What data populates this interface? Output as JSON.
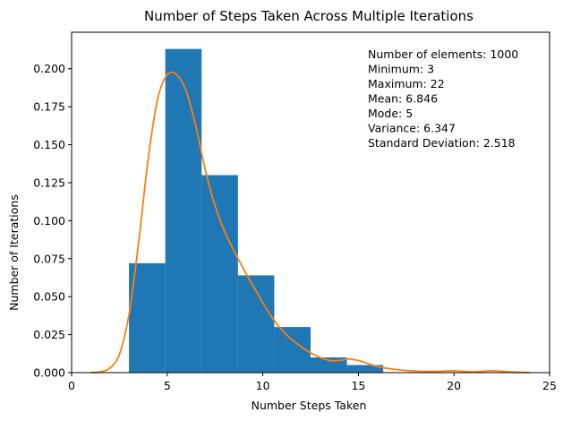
{
  "chart_data": {
    "type": "histogram",
    "title": "Number of Steps Taken Across Multiple Iterations",
    "xlabel": "Number Steps Taken",
    "ylabel": "Number of Iterations",
    "xlim": [
      0,
      25
    ],
    "ylim": [
      0,
      0.224
    ],
    "grid": false,
    "x_ticks": [
      0,
      5,
      10,
      15,
      20,
      25
    ],
    "x_tick_labels": [
      "0",
      "5",
      "10",
      "15",
      "20",
      "25"
    ],
    "y_ticks": [
      0,
      0.025,
      0.05,
      0.075,
      0.1,
      0.125,
      0.15,
      0.175,
      0.2
    ],
    "y_tick_labels": [
      "0.000",
      "0.025",
      "0.050",
      "0.075",
      "0.100",
      "0.125",
      "0.150",
      "0.175",
      "0.200"
    ],
    "bins": [
      {
        "x0": 3.0,
        "x1": 4.9,
        "value": 0.072
      },
      {
        "x0": 4.9,
        "x1": 6.8,
        "value": 0.213
      },
      {
        "x0": 6.8,
        "x1": 8.7,
        "value": 0.13
      },
      {
        "x0": 8.7,
        "x1": 10.6,
        "value": 0.064
      },
      {
        "x0": 10.6,
        "x1": 12.5,
        "value": 0.03
      },
      {
        "x0": 12.5,
        "x1": 14.4,
        "value": 0.01
      },
      {
        "x0": 14.4,
        "x1": 16.3,
        "value": 0.005
      },
      {
        "x0": 16.3,
        "x1": 18.2,
        "value": 0.0
      },
      {
        "x0": 18.2,
        "x1": 20.1,
        "value": 0.0
      },
      {
        "x0": 20.1,
        "x1": 22.0,
        "value": 0.0
      }
    ],
    "kde": {
      "x": [
        1.0,
        1.5,
        2.0,
        2.5,
        3.0,
        3.5,
        4.0,
        4.5,
        5.0,
        5.5,
        6.0,
        6.5,
        7.0,
        7.5,
        8.0,
        8.5,
        9.0,
        9.5,
        10.0,
        10.5,
        11.0,
        11.5,
        12.0,
        12.5,
        13.0,
        13.5,
        14.0,
        14.5,
        15.0,
        15.5,
        16.0,
        17.0,
        18.0,
        19.0,
        20.0,
        21.0,
        22.0,
        23.0,
        24.0
      ],
      "y": [
        0.0,
        0.0005,
        0.003,
        0.012,
        0.038,
        0.085,
        0.14,
        0.18,
        0.196,
        0.196,
        0.185,
        0.162,
        0.133,
        0.11,
        0.093,
        0.08,
        0.068,
        0.057,
        0.046,
        0.036,
        0.028,
        0.022,
        0.017,
        0.013,
        0.01,
        0.008,
        0.008,
        0.009,
        0.008,
        0.006,
        0.004,
        0.002,
        0.001,
        0.0008,
        0.0012,
        0.0005,
        0.0012,
        0.0004,
        0.0
      ]
    },
    "stats_lines": [
      "Number of elements: 1000",
      "Minimum: 3",
      "Maximum: 22",
      "Mean: 6.846",
      "Mode: 5",
      "Variance: 6.347",
      "Standard Deviation: 2.518"
    ],
    "colors": {
      "bars": "#1f77b4",
      "kde": "#ff7f0e",
      "axes": "#000000"
    }
  }
}
